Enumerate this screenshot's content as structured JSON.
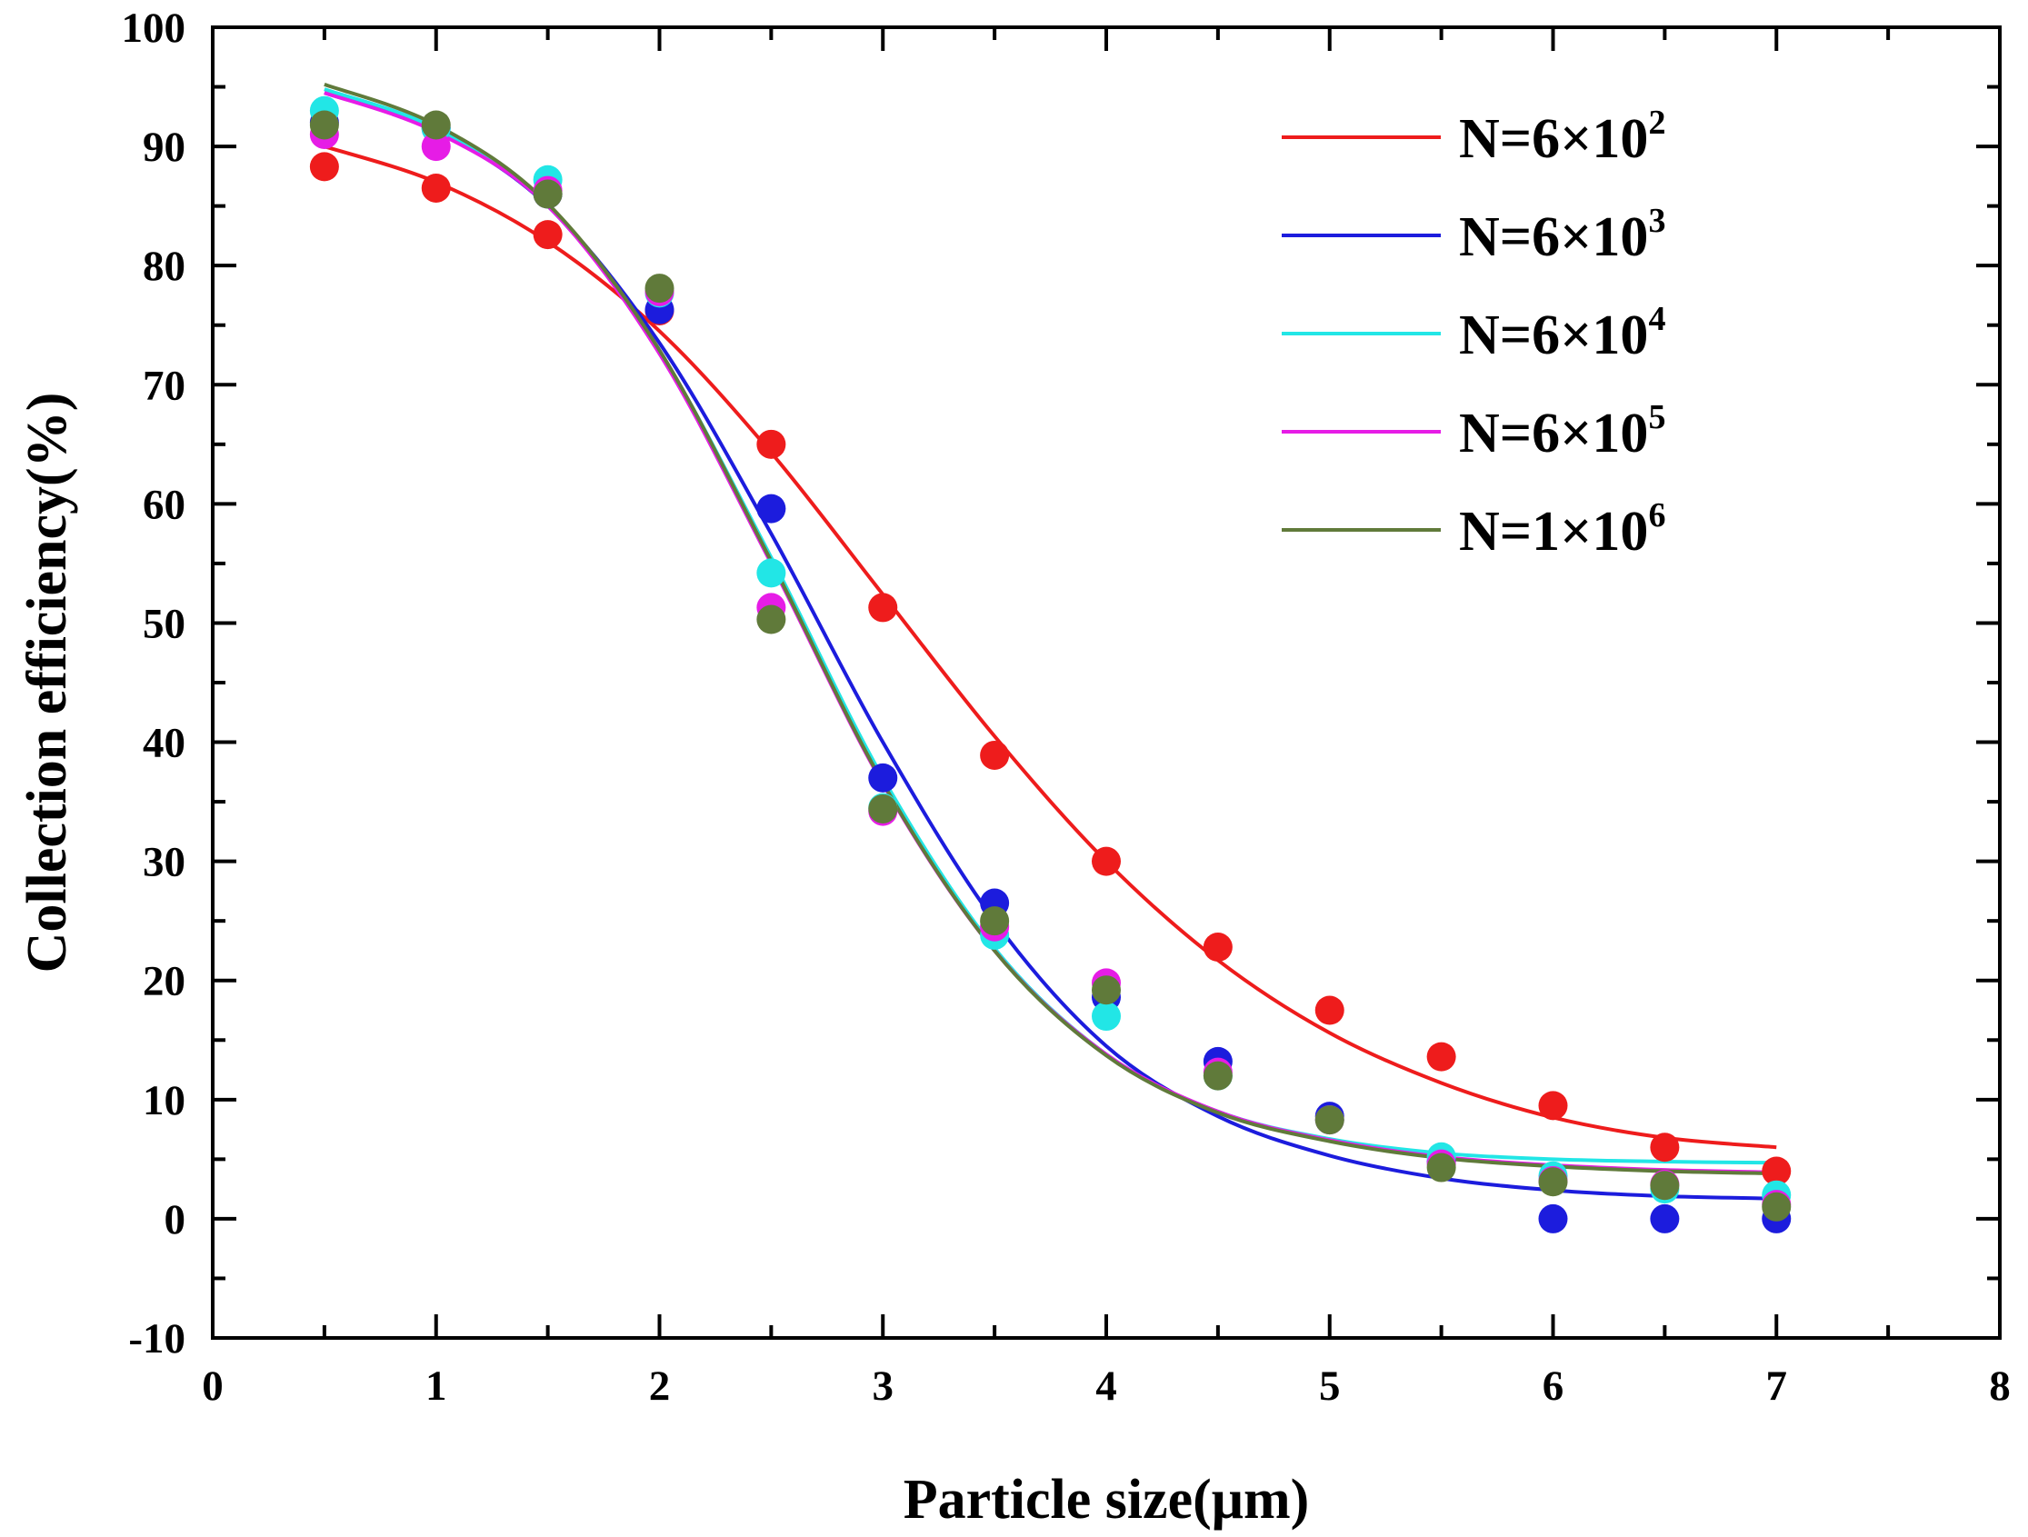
{
  "chart_data": {
    "type": "scatter",
    "title": "",
    "xlabel": "Particle size(μm)",
    "ylabel": "Collection efficiency(%)",
    "xlim": [
      0,
      8
    ],
    "ylim": [
      -10,
      100
    ],
    "x_major_ticks": [
      0,
      1,
      2,
      3,
      4,
      5,
      6,
      7,
      8
    ],
    "y_major_ticks": [
      -10,
      0,
      10,
      20,
      30,
      40,
      50,
      60,
      70,
      80,
      90,
      100
    ],
    "x_minor_ticks": [
      0.5,
      1.5,
      2.5,
      3.5,
      4.5,
      5.5,
      6.5,
      7.5
    ],
    "y_minor_ticks": [
      -5,
      5,
      15,
      25,
      35,
      45,
      55,
      65,
      75,
      85,
      95
    ],
    "grid": false,
    "legend_position": "top-right",
    "x": [
      0.5,
      1,
      1.5,
      2,
      2.5,
      3,
      3.5,
      4,
      4.5,
      5,
      5.5,
      6,
      6.5,
      7
    ],
    "fit_x": [
      0.5,
      1,
      1.5,
      2,
      2.5,
      3,
      3.5,
      4,
      4.5,
      5,
      5.5,
      6,
      6.5,
      7
    ],
    "series": [
      {
        "name": "N=6×10",
        "exponent": "2",
        "color": "#ee1c1c",
        "values": [
          88.3,
          86.5,
          82.6,
          76.2,
          65.0,
          51.3,
          38.9,
          30.0,
          22.8,
          17.5,
          13.6,
          9.5,
          6.0,
          4.0
        ],
        "fit": [
          90.0,
          87.0,
          82.0,
          74.5,
          64.3,
          52.4,
          40.5,
          30.0,
          21.7,
          15.6,
          11.4,
          8.5,
          6.8,
          6.0
        ]
      },
      {
        "name": "N=6×10",
        "exponent": "3",
        "color": "#1c1cdd",
        "values": [
          92.0,
          91.5,
          86.0,
          76.3,
          59.6,
          37.0,
          26.5,
          18.6,
          13.2,
          8.6,
          4.8,
          0.0,
          0.0,
          0.0
        ],
        "fit": [
          94.5,
          91.3,
          85.0,
          73.5,
          57.5,
          40.0,
          25.0,
          14.5,
          8.6,
          5.3,
          3.4,
          2.4,
          1.9,
          1.7
        ]
      },
      {
        "name": "N=6×10",
        "exponent": "4",
        "color": "#22e6e6",
        "values": [
          93.0,
          91.5,
          87.2,
          77.7,
          54.2,
          34.5,
          23.8,
          17.0,
          12.0,
          8.3,
          5.2,
          3.6,
          2.5,
          2.0
        ],
        "fit": [
          94.8,
          91.5,
          85.0,
          72.8,
          55.5,
          37.0,
          22.7,
          13.8,
          9.0,
          6.7,
          5.5,
          5.0,
          4.8,
          4.7
        ]
      },
      {
        "name": "N=6×10",
        "exponent": "5",
        "color": "#e61ce6",
        "values": [
          91.0,
          90.0,
          86.3,
          77.8,
          51.3,
          34.2,
          24.5,
          19.8,
          12.3,
          8.3,
          4.6,
          3.2,
          2.9,
          1.2
        ],
        "fit": [
          94.5,
          91.2,
          85.0,
          72.6,
          55.0,
          36.5,
          22.5,
          13.8,
          9.0,
          6.6,
          5.2,
          4.5,
          4.1,
          3.9
        ]
      },
      {
        "name": "N=1×10",
        "exponent": "6",
        "color": "#607a3a",
        "values": [
          91.8,
          91.8,
          86.0,
          78.1,
          50.3,
          34.4,
          25.0,
          19.2,
          12.0,
          8.3,
          4.3,
          3.1,
          2.8,
          1.0
        ],
        "fit": [
          95.2,
          91.8,
          85.2,
          72.9,
          55.2,
          36.6,
          22.5,
          13.7,
          8.9,
          6.5,
          5.1,
          4.4,
          4.0,
          3.8
        ]
      }
    ]
  }
}
